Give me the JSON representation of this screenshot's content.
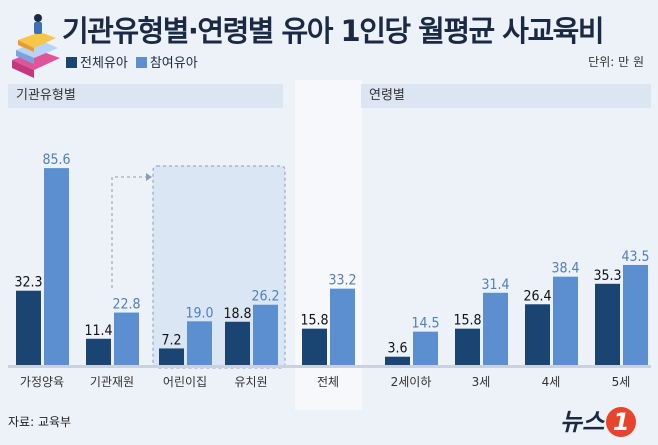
{
  "title": "기관유형별·연령별 유아 1인당 월평균 사교육비",
  "unit": "단위: 만 원",
  "panels": {
    "left": "기관유형별",
    "right": "연령별"
  },
  "source": "자료: 교육부",
  "logo": "뉴스1",
  "colors": {
    "total": "#1a4573",
    "participating": "#5b8fd0"
  },
  "chart_data": {
    "type": "bar",
    "categories": [
      "가정양육",
      "기관재원",
      "어린이집",
      "유치원",
      "전체",
      "2세이하",
      "3세",
      "4세",
      "5세"
    ],
    "series": [
      {
        "name": "전체유아",
        "values": [
          32.3,
          11.4,
          7.2,
          18.8,
          15.8,
          3.6,
          15.8,
          26.4,
          35.3
        ]
      },
      {
        "name": "참여유아",
        "values": [
          85.6,
          22.8,
          19.0,
          26.2,
          33.2,
          14.5,
          31.4,
          38.4,
          43.5
        ]
      }
    ],
    "ylim": [
      0,
      90
    ],
    "grid": false,
    "legend": "top-left"
  }
}
